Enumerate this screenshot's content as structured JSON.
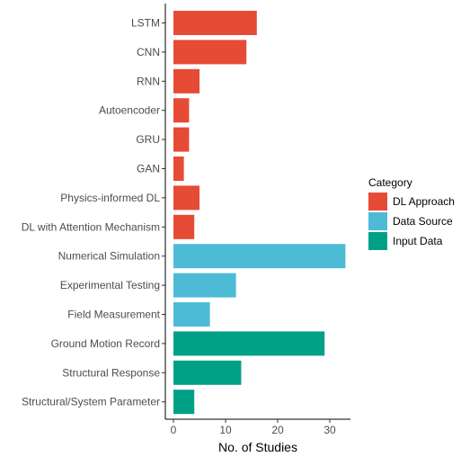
{
  "chart_data": {
    "type": "bar",
    "orientation": "horizontal",
    "xlabel": "No. of Studies",
    "xlim": [
      0,
      34
    ],
    "xticks": [
      0,
      10,
      20,
      30
    ],
    "grid": false,
    "legend": {
      "title": "Category",
      "placement": "right",
      "entries": [
        {
          "name": "DL Approach",
          "color": "#E64B35"
        },
        {
          "name": "Data Source",
          "color": "#4DBBD5"
        },
        {
          "name": "Input Data",
          "color": "#00A087"
        }
      ]
    },
    "bars": [
      {
        "label": "LSTM",
        "value": 16,
        "category": "DL Approach"
      },
      {
        "label": "CNN",
        "value": 14,
        "category": "DL Approach"
      },
      {
        "label": "RNN",
        "value": 5,
        "category": "DL Approach"
      },
      {
        "label": "Autoencoder",
        "value": 3,
        "category": "DL Approach"
      },
      {
        "label": "GRU",
        "value": 3,
        "category": "DL Approach"
      },
      {
        "label": "GAN",
        "value": 2,
        "category": "DL Approach"
      },
      {
        "label": "Physics-informed DL",
        "value": 5,
        "category": "DL Approach"
      },
      {
        "label": "DL with Attention Mechanism",
        "value": 4,
        "category": "DL Approach"
      },
      {
        "label": "Numerical Simulation",
        "value": 33,
        "category": "Data Source"
      },
      {
        "label": "Experimental Testing",
        "value": 12,
        "category": "Data Source"
      },
      {
        "label": "Field Measurement",
        "value": 7,
        "category": "Data Source"
      },
      {
        "label": "Ground Motion Record",
        "value": 29,
        "category": "Input Data"
      },
      {
        "label": "Structural Response",
        "value": 13,
        "category": "Input Data"
      },
      {
        "label": "Structural/System Parameter",
        "value": 4,
        "category": "Input Data"
      }
    ]
  }
}
